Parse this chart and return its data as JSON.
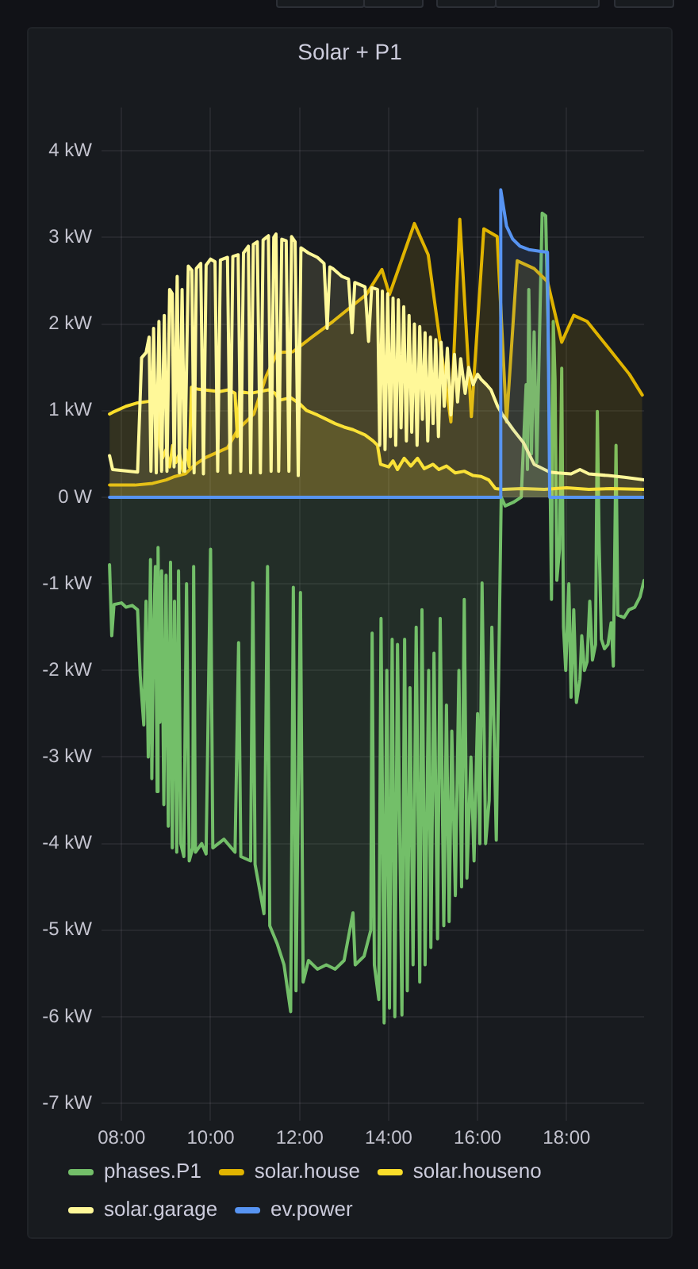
{
  "chart_data": {
    "type": "area",
    "title": "Solar + P1",
    "xlim": [
      7.55,
      19.74
    ],
    "xticks": [
      {
        "value": 8,
        "label": "08:00"
      },
      {
        "value": 10,
        "label": "10:00"
      },
      {
        "value": 12,
        "label": "12:00"
      },
      {
        "value": 14,
        "label": "14:00"
      },
      {
        "value": 16,
        "label": "16:00"
      },
      {
        "value": 18,
        "label": "18:00"
      }
    ],
    "ylim": [
      -7.2,
      4.5
    ],
    "yticks": [
      {
        "value": 4,
        "label": "4 kW"
      },
      {
        "value": 3,
        "label": "3 kW"
      },
      {
        "value": 2,
        "label": "2 kW"
      },
      {
        "value": 1,
        "label": "1 kW"
      },
      {
        "value": 0,
        "label": "0 W"
      },
      {
        "value": -1,
        "label": "-1 kW"
      },
      {
        "value": -2,
        "label": "-2 kW"
      },
      {
        "value": -3,
        "label": "-3 kW"
      },
      {
        "value": -4,
        "label": "-4 kW"
      },
      {
        "value": -5,
        "label": "-5 kW"
      },
      {
        "value": -6,
        "label": "-6 kW"
      },
      {
        "value": -7,
        "label": "-7 kW"
      }
    ],
    "grid": true,
    "legend": "bottom",
    "marker": "none",
    "line_style": "solid",
    "series": [
      {
        "name": "phases.P1",
        "color": "#73bf69",
        "x": [
          7.73,
          7.78,
          7.83,
          8.0,
          8.1,
          8.24,
          8.36,
          8.42,
          8.5,
          8.55,
          8.6,
          8.65,
          8.68,
          8.72,
          8.76,
          8.8,
          8.82,
          8.86,
          8.9,
          8.95,
          9.0,
          9.05,
          9.1,
          9.14,
          9.19,
          9.24,
          9.28,
          9.33,
          9.4,
          9.46,
          9.52,
          9.6,
          9.62,
          9.66,
          9.8,
          9.9,
          10.0,
          10.05,
          10.3,
          10.55,
          10.63,
          10.68,
          10.9,
          10.95,
          11.0,
          11.2,
          11.28,
          11.33,
          11.5,
          11.65,
          11.8,
          11.86,
          11.92,
          12.02,
          12.08,
          12.2,
          12.4,
          12.6,
          12.8,
          13.0,
          13.2,
          13.25,
          13.45,
          13.6,
          13.63,
          13.68,
          13.78,
          13.83,
          13.9,
          13.96,
          14.02,
          14.08,
          14.14,
          14.2,
          14.3,
          14.36,
          14.42,
          14.48,
          14.55,
          14.62,
          14.7,
          14.75,
          14.82,
          14.9,
          14.95,
          15.02,
          15.1,
          15.16,
          15.24,
          15.3,
          15.36,
          15.42,
          15.5,
          15.58,
          15.64,
          15.7,
          15.76,
          15.85,
          15.92,
          16.0,
          16.05,
          16.1,
          16.18,
          16.26,
          16.32,
          16.42,
          16.53,
          16.62,
          16.8,
          16.98,
          17.09,
          17.12,
          17.15,
          17.21,
          17.27,
          17.33,
          17.45,
          17.53,
          17.6,
          17.66,
          17.7,
          17.74,
          17.78,
          17.84,
          17.89,
          17.93,
          17.98,
          18.05,
          18.1,
          18.16,
          18.22,
          18.3,
          18.34,
          18.4,
          18.46,
          18.52,
          18.58,
          18.65,
          18.69,
          18.73,
          18.78,
          18.85,
          18.93,
          19.0,
          19.05,
          19.11,
          19.15,
          19.29,
          19.4,
          19.53,
          19.65,
          19.74
        ],
        "values": [
          -0.78,
          -1.6,
          -1.24,
          -1.22,
          -1.27,
          -1.25,
          -1.3,
          -2.06,
          -2.63,
          -1.2,
          -3.0,
          -0.72,
          -3.25,
          -1.6,
          -0.8,
          -3.4,
          -0.58,
          -2.6,
          -0.85,
          -3.55,
          -0.9,
          -3.8,
          -0.75,
          -4.05,
          -1.2,
          -4.1,
          -0.85,
          -4.0,
          -4.15,
          -1.0,
          -4.2,
          -4.05,
          -0.8,
          -4.1,
          -4.0,
          -4.12,
          -0.6,
          -4.05,
          -3.95,
          -4.1,
          -1.68,
          -4.15,
          -4.2,
          -0.99,
          -4.24,
          -4.81,
          -0.8,
          -4.95,
          -5.16,
          -5.4,
          -5.94,
          -1.04,
          -5.7,
          -1.1,
          -5.6,
          -5.35,
          -5.45,
          -5.4,
          -5.45,
          -5.35,
          -4.8,
          -5.4,
          -5.3,
          -5.0,
          -1.57,
          -5.4,
          -5.8,
          -1.4,
          -6.07,
          -2.0,
          -5.9,
          -1.64,
          -6.0,
          -1.7,
          -5.98,
          -1.64,
          -5.7,
          -2.2,
          -5.4,
          -1.5,
          -5.6,
          -1.3,
          -5.4,
          -2.0,
          -5.2,
          -1.8,
          -5.1,
          -1.4,
          -4.95,
          -2.4,
          -4.9,
          -2.7,
          -4.6,
          -2.0,
          -4.5,
          -1.18,
          -4.4,
          -3.0,
          -4.2,
          -2.5,
          -4.0,
          -0.99,
          -4.0,
          -3.5,
          -1.5,
          -3.96,
          0.0,
          -0.1,
          -0.06,
          0.0,
          1.3,
          0.32,
          2.4,
          0.5,
          1.91,
          0.4,
          3.28,
          3.25,
          1.54,
          -1.18,
          2.03,
          1.36,
          -0.96,
          -0.6,
          1.49,
          -1.5,
          -2.0,
          -1.0,
          -2.31,
          -1.3,
          -2.37,
          -2.1,
          -1.6,
          -2.0,
          -1.9,
          -1.2,
          -1.88,
          -1.7,
          0.99,
          -0.5,
          -1.64,
          -1.75,
          -1.7,
          -1.45,
          -1.95,
          0.6,
          -1.36,
          -1.39,
          -1.3,
          -1.27,
          -1.15,
          -0.96
        ]
      },
      {
        "name": "solar.house",
        "color": "#e0b400",
        "x": [
          7.73,
          8.3,
          8.7,
          9.0,
          9.2,
          9.43,
          9.66,
          9.9,
          10.38,
          10.61,
          10.85,
          10.97,
          11.25,
          11.5,
          11.85,
          12.28,
          12.75,
          13.23,
          13.5,
          13.85,
          14.02,
          14.58,
          14.89,
          15.4,
          15.6,
          15.86,
          16.14,
          16.44,
          16.65,
          16.89,
          17.27,
          17.57,
          17.89,
          18.16,
          18.46,
          18.93,
          19.41,
          19.7
        ],
        "values": [
          0.14,
          0.14,
          0.16,
          0.2,
          0.24,
          0.27,
          0.38,
          0.46,
          0.57,
          0.78,
          0.9,
          0.96,
          1.4,
          1.67,
          1.68,
          1.85,
          2.03,
          2.23,
          2.34,
          2.63,
          2.34,
          3.16,
          2.8,
          0.87,
          3.21,
          0.93,
          3.1,
          3.01,
          0.87,
          2.73,
          2.64,
          2.49,
          1.79,
          2.1,
          2.03,
          1.73,
          1.42,
          1.18
        ]
      },
      {
        "name": "solar.houseno",
        "color": "#fade2a",
        "x": [
          7.73,
          7.8,
          8.1,
          8.36,
          8.8,
          8.86,
          8.92,
          9.0,
          9.08,
          9.15,
          9.22,
          9.3,
          9.38,
          9.45,
          9.52,
          9.57,
          9.7,
          9.85,
          10.2,
          10.4,
          10.55,
          10.6,
          10.66,
          10.9,
          11.1,
          11.3,
          11.45,
          11.55,
          11.8,
          12.0,
          12.16,
          12.4,
          12.6,
          12.8,
          13.0,
          13.2,
          13.47,
          13.65,
          13.75,
          13.82,
          14.0,
          14.1,
          14.2,
          14.35,
          14.5,
          14.65,
          14.8,
          15.0,
          15.13,
          15.3,
          15.5,
          15.7,
          15.9,
          16.08,
          16.25,
          16.4,
          16.56,
          17.0,
          17.5,
          18.0,
          18.5,
          19.0,
          19.74
        ],
        "values": [
          0.96,
          0.98,
          1.05,
          1.09,
          1.12,
          0.6,
          0.45,
          0.55,
          0.35,
          0.6,
          0.4,
          0.5,
          0.3,
          0.55,
          0.35,
          1.27,
          1.25,
          1.24,
          1.22,
          1.24,
          1.2,
          0.7,
          1.22,
          1.2,
          1.22,
          1.24,
          1.2,
          1.12,
          1.15,
          1.08,
          1.0,
          0.95,
          0.9,
          0.85,
          0.81,
          0.78,
          0.72,
          0.65,
          0.6,
          0.38,
          0.35,
          0.42,
          0.32,
          0.45,
          0.36,
          0.45,
          0.33,
          0.38,
          0.32,
          0.36,
          0.28,
          0.3,
          0.25,
          0.24,
          0.2,
          0.1,
          0.09,
          0.1,
          0.09,
          0.11,
          0.09,
          0.1,
          0.09
        ]
      },
      {
        "name": "solar.garage",
        "color": "#fff899",
        "x": [
          7.73,
          7.8,
          8.36,
          8.45,
          8.55,
          8.62,
          8.66,
          8.72,
          8.78,
          8.84,
          8.9,
          8.96,
          9.02,
          9.08,
          9.14,
          9.18,
          9.25,
          9.3,
          9.36,
          9.42,
          9.5,
          9.58,
          9.63,
          9.68,
          9.78,
          9.84,
          9.9,
          10.0,
          10.1,
          10.16,
          10.22,
          10.38,
          10.44,
          10.5,
          10.62,
          10.68,
          10.74,
          10.85,
          10.9,
          10.96,
          11.05,
          11.12,
          11.18,
          11.3,
          11.36,
          11.42,
          11.47,
          11.53,
          11.6,
          11.7,
          11.76,
          11.82,
          11.9,
          11.97,
          12.03,
          12.2,
          12.4,
          12.55,
          12.62,
          12.68,
          12.75,
          12.95,
          13.1,
          13.18,
          13.24,
          13.47,
          13.55,
          13.62,
          13.75,
          13.8,
          13.86,
          13.92,
          13.98,
          14.04,
          14.1,
          14.16,
          14.22,
          14.28,
          14.34,
          14.4,
          14.46,
          14.52,
          14.58,
          14.64,
          14.7,
          14.76,
          14.82,
          14.88,
          14.94,
          15.0,
          15.06,
          15.12,
          15.18,
          15.25,
          15.32,
          15.4,
          15.48,
          15.55,
          15.62,
          15.72,
          15.8,
          15.9,
          16.0,
          16.08,
          16.2,
          16.3,
          16.45,
          16.55,
          16.8,
          17.03,
          17.27,
          17.62,
          17.8,
          18.1,
          18.3,
          18.5,
          18.93,
          19.3,
          19.74
        ],
        "values": [
          0.48,
          0.32,
          0.29,
          1.61,
          1.67,
          1.85,
          0.3,
          1.95,
          0.28,
          2.03,
          0.3,
          2.1,
          0.3,
          2.4,
          2.35,
          0.35,
          2.55,
          0.28,
          2.4,
          0.3,
          2.67,
          2.62,
          0.28,
          2.64,
          2.7,
          0.27,
          2.68,
          2.75,
          2.72,
          0.3,
          2.74,
          2.77,
          0.28,
          2.78,
          2.8,
          0.3,
          2.82,
          2.9,
          0.28,
          2.92,
          2.95,
          0.28,
          2.97,
          3.02,
          0.3,
          3.0,
          3.04,
          0.3,
          2.98,
          2.96,
          0.3,
          3.01,
          2.95,
          0.25,
          2.88,
          2.82,
          2.77,
          2.7,
          1.95,
          2.66,
          2.64,
          2.55,
          2.52,
          1.9,
          2.48,
          2.43,
          1.8,
          2.42,
          2.4,
          0.6,
          2.38,
          0.55,
          2.35,
          0.7,
          2.3,
          0.6,
          2.28,
          0.8,
          2.2,
          0.65,
          2.1,
          0.75,
          2.0,
          0.6,
          1.97,
          0.9,
          1.9,
          0.65,
          1.85,
          0.85,
          1.82,
          0.7,
          1.79,
          1.05,
          1.72,
          0.95,
          1.65,
          1.1,
          1.6,
          1.2,
          1.5,
          1.3,
          1.42,
          1.36,
          1.3,
          1.24,
          1.05,
          0.96,
          0.78,
          0.63,
          0.38,
          0.29,
          0.28,
          0.27,
          0.32,
          0.27,
          0.25,
          0.23,
          0.2
        ]
      },
      {
        "name": "ev.power",
        "color": "#5794f2",
        "x": [
          7.73,
          16.5,
          16.52,
          16.65,
          16.79,
          16.95,
          17.15,
          17.39,
          17.57,
          17.62,
          19.74
        ],
        "values": [
          0,
          0,
          3.55,
          3.13,
          2.98,
          2.9,
          2.86,
          2.84,
          2.83,
          0,
          0
        ]
      }
    ]
  }
}
